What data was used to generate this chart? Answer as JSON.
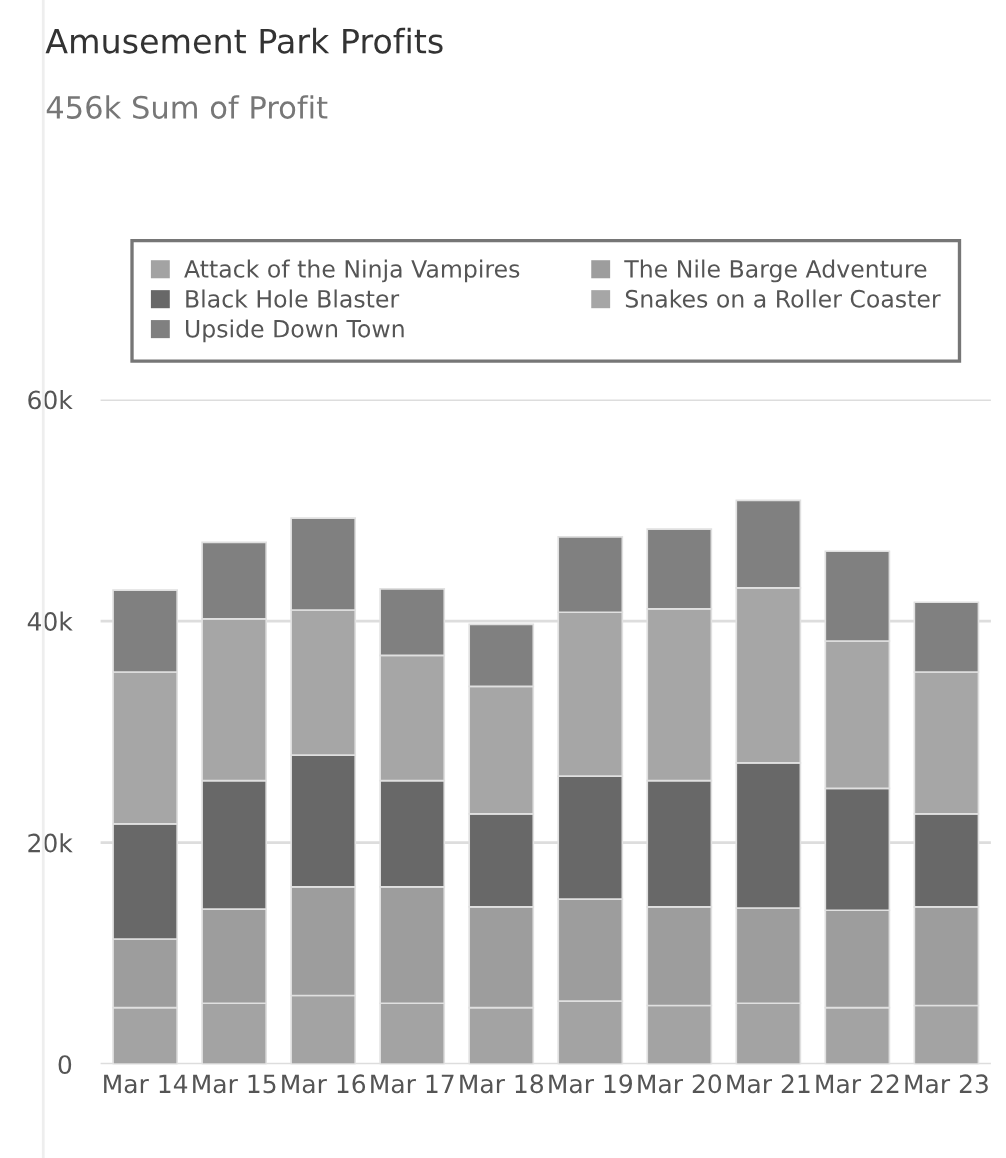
{
  "chart_data": {
    "type": "bar",
    "title": "Amusement Park Profits",
    "subtitle": "456k Sum of Profit",
    "categories": [
      "Mar 14",
      "Mar 15",
      "Mar 16",
      "Mar 17",
      "Mar 18",
      "Mar 19",
      "Mar 20",
      "Mar 21",
      "Mar 22",
      "Mar 23"
    ],
    "stacked": true,
    "series": [
      {
        "name": "Attack of the Ninja Vampires",
        "color": "#a3a3a3",
        "values": [
          5100,
          5500,
          6200,
          5500,
          5100,
          5700,
          5300,
          5500,
          5100,
          5300
        ]
      },
      {
        "name": "The Nile Barge Adventure",
        "color": "#9d9d9d",
        "values": [
          6200,
          8500,
          9800,
          10500,
          9100,
          9200,
          8900,
          8600,
          8800,
          8900
        ]
      },
      {
        "name": "Black Hole Blaster",
        "color": "#686868",
        "values": [
          10400,
          11600,
          11900,
          9600,
          8400,
          11100,
          11400,
          13100,
          11000,
          8400
        ]
      },
      {
        "name": "Snakes on a Roller Coaster",
        "color": "#a6a6a6",
        "values": [
          13700,
          14600,
          13100,
          11300,
          11500,
          14800,
          15500,
          15800,
          13300,
          12800
        ]
      },
      {
        "name": "Upside Down Town",
        "color": "#808080",
        "values": [
          7400,
          6900,
          8300,
          6000,
          5600,
          6800,
          7200,
          7900,
          8100,
          6300
        ]
      }
    ],
    "ylim": [
      0,
      60000
    ],
    "yticks": [
      0,
      {
        "value": 20000,
        "label": "20k"
      },
      {
        "value": 40000,
        "label": "40k"
      },
      {
        "value": 60000,
        "label": "60k"
      }
    ],
    "grid": "y",
    "legend": "top"
  }
}
